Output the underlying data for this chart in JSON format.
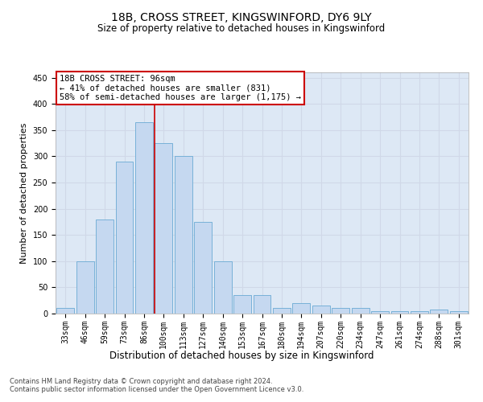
{
  "title1": "18B, CROSS STREET, KINGSWINFORD, DY6 9LY",
  "title2": "Size of property relative to detached houses in Kingswinford",
  "xlabel": "Distribution of detached houses by size in Kingswinford",
  "ylabel": "Number of detached properties",
  "categories": [
    "33sqm",
    "46sqm",
    "59sqm",
    "73sqm",
    "86sqm",
    "100sqm",
    "113sqm",
    "127sqm",
    "140sqm",
    "153sqm",
    "167sqm",
    "180sqm",
    "194sqm",
    "207sqm",
    "220sqm",
    "234sqm",
    "247sqm",
    "261sqm",
    "274sqm",
    "288sqm",
    "301sqm"
  ],
  "values": [
    10,
    100,
    180,
    290,
    365,
    325,
    300,
    175,
    100,
    35,
    35,
    10,
    20,
    15,
    10,
    10,
    5,
    5,
    5,
    7,
    5
  ],
  "bar_color": "#c5d8f0",
  "bar_edge_color": "#6aaad4",
  "vline_index": 5,
  "vline_color": "#cc0000",
  "annotation_text": "18B CROSS STREET: 96sqm\n← 41% of detached houses are smaller (831)\n58% of semi-detached houses are larger (1,175) →",
  "annotation_box_color": "#ffffff",
  "annotation_box_edge": "#cc0000",
  "footer": "Contains HM Land Registry data © Crown copyright and database right 2024.\nContains public sector information licensed under the Open Government Licence v3.0.",
  "ylim": [
    0,
    460
  ],
  "yticks": [
    0,
    50,
    100,
    150,
    200,
    250,
    300,
    350,
    400,
    450
  ],
  "grid_color": "#d0d8e8",
  "bg_color": "#dde8f5",
  "fig_bg": "#ffffff",
  "title1_fontsize": 10,
  "title2_fontsize": 8.5,
  "ylabel_fontsize": 8,
  "xlabel_fontsize": 8.5,
  "tick_fontsize": 7,
  "annotation_fontsize": 7.5,
  "footer_fontsize": 6
}
